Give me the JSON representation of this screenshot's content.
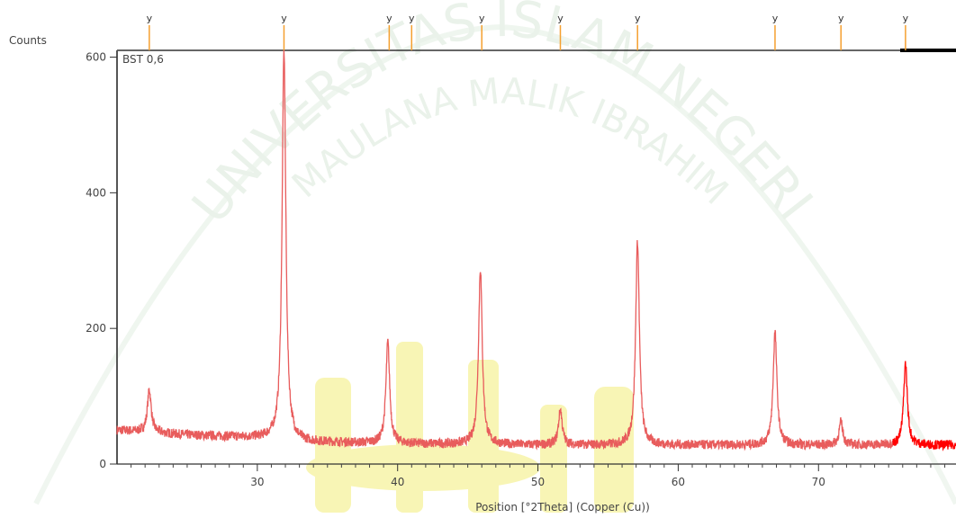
{
  "watermark": {
    "line1": "UNIVERSITAS ISLAM NEGERI",
    "line2": "MAULANA MALIK IBRAHIM",
    "color": "#d9e8d9",
    "logo_color": "#f3ee7a"
  },
  "chart_data": {
    "type": "line",
    "title": "",
    "sample_label": "BST 0,6",
    "xlabel": "Position [°2Theta] (Copper (Cu))",
    "ylabel": "Counts",
    "xlim": [
      20.0,
      79.8
    ],
    "ylim": [
      0,
      610
    ],
    "x_ticks": [
      30,
      40,
      50,
      60,
      70
    ],
    "y_ticks": [
      0,
      200,
      400,
      600
    ],
    "baseline": [
      {
        "x": 20.0,
        "y": 50
      },
      {
        "x": 25.0,
        "y": 43
      },
      {
        "x": 31.0,
        "y": 38
      },
      {
        "x": 33.0,
        "y": 33
      },
      {
        "x": 40.0,
        "y": 30
      },
      {
        "x": 50.0,
        "y": 28
      },
      {
        "x": 60.0,
        "y": 28
      },
      {
        "x": 70.0,
        "y": 28
      },
      {
        "x": 79.8,
        "y": 28
      }
    ],
    "peaks": [
      {
        "x": 22.3,
        "height": 110
      },
      {
        "x": 31.9,
        "height": 610
      },
      {
        "x": 39.3,
        "height": 180
      },
      {
        "x": 45.9,
        "height": 288
      },
      {
        "x": 51.6,
        "height": 80
      },
      {
        "x": 57.1,
        "height": 328
      },
      {
        "x": 66.9,
        "height": 195
      },
      {
        "x": 71.6,
        "height": 62
      },
      {
        "x": 76.2,
        "height": 148
      }
    ],
    "reference_lines": [
      22.3,
      31.9,
      39.4,
      41.0,
      46.0,
      51.6,
      57.1,
      66.9,
      71.6,
      76.2
    ],
    "reference_marker": "y",
    "line_color": "#e85c5c",
    "line_color_end": "#ff0000",
    "ref_color": "#f5a030"
  }
}
